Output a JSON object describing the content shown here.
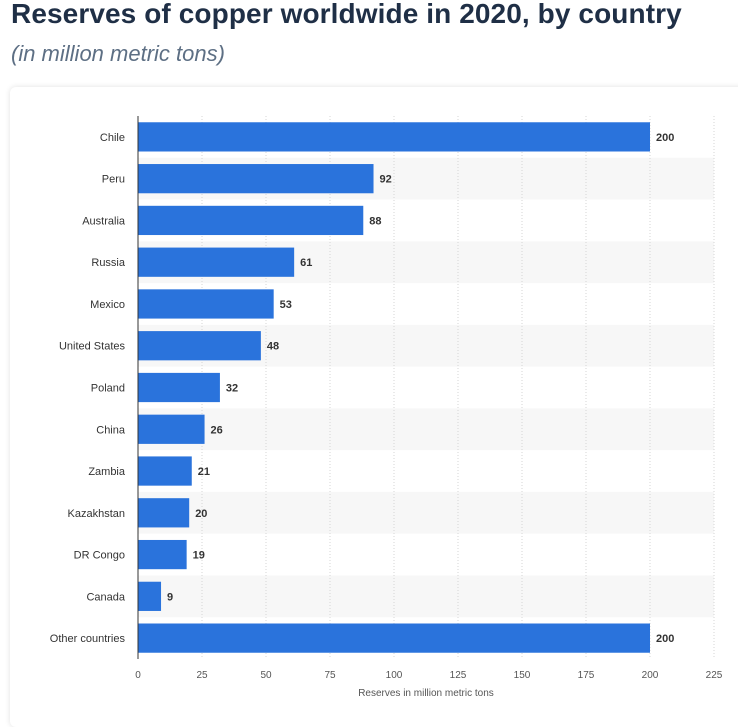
{
  "chart_data": {
    "type": "bar",
    "orientation": "horizontal",
    "title": "Reserves of copper worldwide in 2020, by country",
    "subtitle": "(in million metric tons)",
    "xlabel": "Reserves in million metric tons",
    "categories": [
      "Chile",
      "Peru",
      "Australia",
      "Russia",
      "Mexico",
      "United States",
      "Poland",
      "China",
      "Zambia",
      "Kazakhstan",
      "DR Congo",
      "Canada",
      "Other countries"
    ],
    "values": [
      200,
      92,
      88,
      61,
      53,
      48,
      32,
      26,
      21,
      20,
      19,
      9,
      200
    ],
    "xlim": [
      0,
      225
    ],
    "ticks": [
      0,
      25,
      50,
      75,
      100,
      125,
      150,
      175,
      200,
      225
    ],
    "grid": true,
    "bar_color": "#2a73dc",
    "stripe_color": "#f7f7f7"
  }
}
